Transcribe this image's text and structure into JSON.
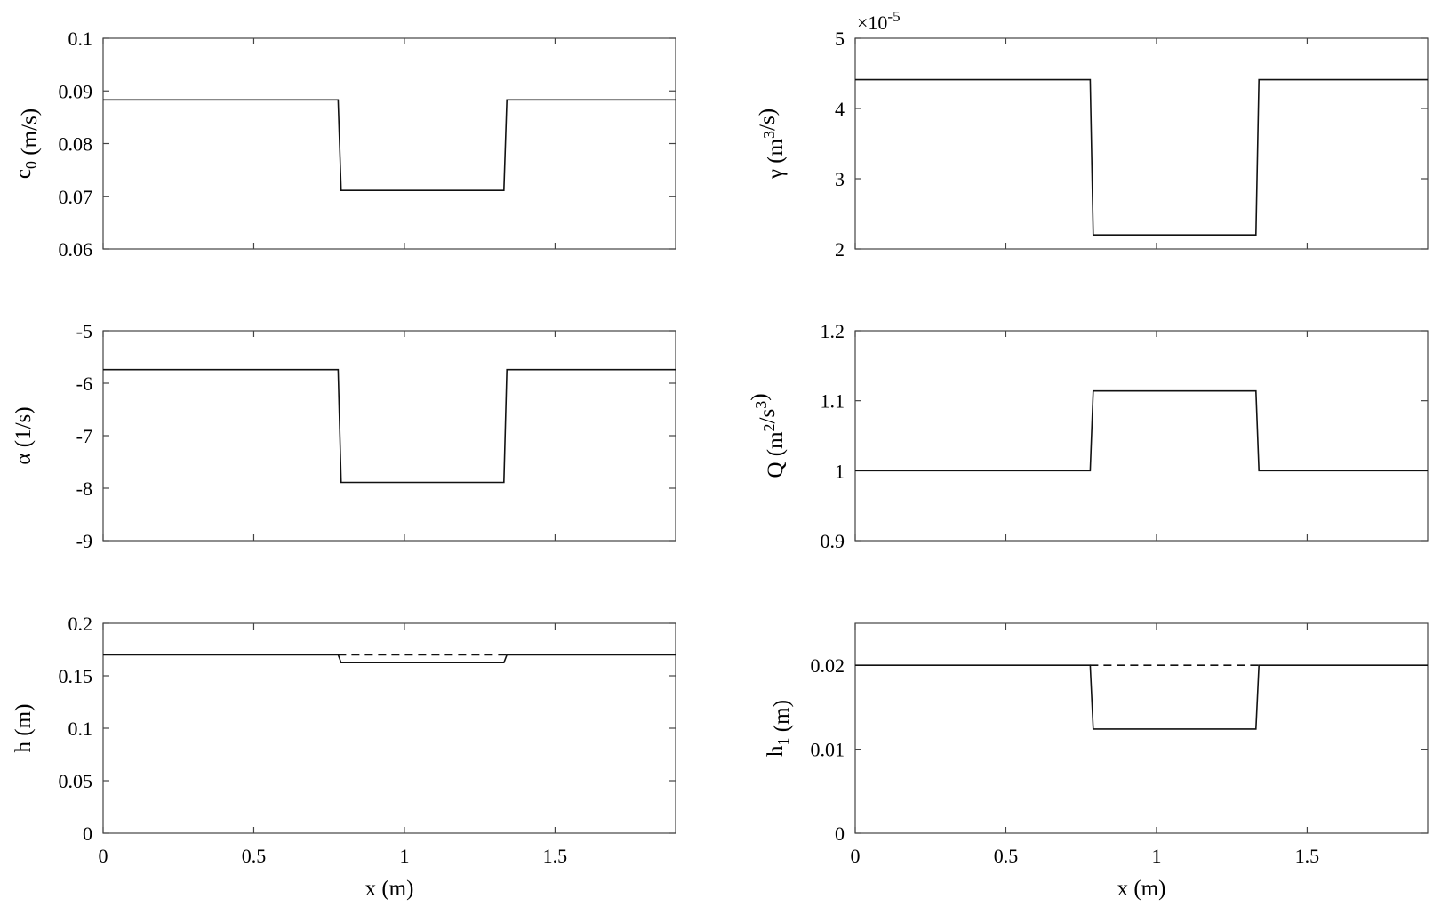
{
  "chart_data": [
    {
      "type": "line",
      "ylabel": "c_0 (m/s)",
      "xlabel": "",
      "xlim": [
        0,
        1.9
      ],
      "ylim": [
        0.06,
        0.1
      ],
      "xticks": [
        0,
        0.5,
        1,
        1.5
      ],
      "yticks": [
        0.06,
        0.07,
        0.08,
        0.09,
        0.1
      ],
      "show_xtick_labels": false,
      "series": [
        {
          "style": "solid",
          "x": [
            0,
            0.78,
            0.79,
            1.33,
            1.34,
            1.9
          ],
          "y": [
            0.0883,
            0.0883,
            0.0711,
            0.0711,
            0.0883,
            0.0883
          ]
        }
      ]
    },
    {
      "type": "line",
      "ylabel": "γ (m^3/s)",
      "xlabel": "",
      "multiplier": "×10^-5",
      "xlim": [
        0,
        1.9
      ],
      "ylim": [
        2,
        5
      ],
      "xticks": [
        0,
        0.5,
        1,
        1.5
      ],
      "yticks": [
        2,
        3,
        4,
        5
      ],
      "show_xtick_labels": false,
      "series": [
        {
          "style": "solid",
          "x": [
            0,
            0.78,
            0.79,
            1.33,
            1.34,
            1.9
          ],
          "y": [
            4.41,
            4.41,
            2.2,
            2.2,
            4.41,
            4.41
          ]
        }
      ]
    },
    {
      "type": "line",
      "ylabel": "α (1/s)",
      "xlabel": "",
      "xlim": [
        0,
        1.9
      ],
      "ylim": [
        -9,
        -5
      ],
      "xticks": [
        0,
        0.5,
        1,
        1.5
      ],
      "yticks": [
        -9,
        -8,
        -7,
        -6,
        -5
      ],
      "show_xtick_labels": false,
      "series": [
        {
          "style": "solid",
          "x": [
            0,
            0.78,
            0.79,
            1.33,
            1.34,
            1.9
          ],
          "y": [
            -5.74,
            -5.74,
            -7.89,
            -7.89,
            -5.74,
            -5.74
          ]
        }
      ]
    },
    {
      "type": "line",
      "ylabel": "Q (m^2/s^3)",
      "xlabel": "",
      "xlim": [
        0,
        1.9
      ],
      "ylim": [
        0.9,
        1.2
      ],
      "xticks": [
        0,
        0.5,
        1,
        1.5
      ],
      "yticks": [
        0.9,
        1,
        1.1,
        1.2
      ],
      "show_xtick_labels": false,
      "series": [
        {
          "style": "solid",
          "x": [
            0,
            0.78,
            0.79,
            1.33,
            1.34,
            1.9
          ],
          "y": [
            1.0,
            1.0,
            1.114,
            1.114,
            1.0,
            1.0
          ]
        }
      ]
    },
    {
      "type": "line",
      "ylabel": "h (m)",
      "xlabel": "x (m)",
      "xlim": [
        0,
        1.9
      ],
      "ylim": [
        0,
        0.2
      ],
      "xticks": [
        0,
        0.5,
        1,
        1.5
      ],
      "yticks": [
        0,
        0.05,
        0.1,
        0.15,
        0.2
      ],
      "show_xtick_labels": true,
      "series": [
        {
          "style": "solid",
          "x": [
            0,
            0.78,
            0.79,
            1.33,
            1.34,
            1.9
          ],
          "y": [
            0.17,
            0.17,
            0.1625,
            0.1625,
            0.17,
            0.17
          ]
        },
        {
          "style": "dashed",
          "x": [
            0.78,
            1.34
          ],
          "y": [
            0.17,
            0.17
          ]
        }
      ]
    },
    {
      "type": "line",
      "ylabel": "h_1 (m)",
      "xlabel": "x (m)",
      "xlim": [
        0,
        1.9
      ],
      "ylim": [
        0,
        0.025
      ],
      "xticks": [
        0,
        0.5,
        1,
        1.5
      ],
      "yticks": [
        0,
        0.01,
        0.02
      ],
      "show_xtick_labels": true,
      "series": [
        {
          "style": "solid",
          "x": [
            0,
            0.78,
            0.79,
            1.33,
            1.34,
            1.9
          ],
          "y": [
            0.02,
            0.02,
            0.0124,
            0.0124,
            0.02,
            0.02
          ]
        },
        {
          "style": "dashed",
          "x": [
            0.78,
            1.34
          ],
          "y": [
            0.02,
            0.02
          ]
        }
      ]
    }
  ]
}
